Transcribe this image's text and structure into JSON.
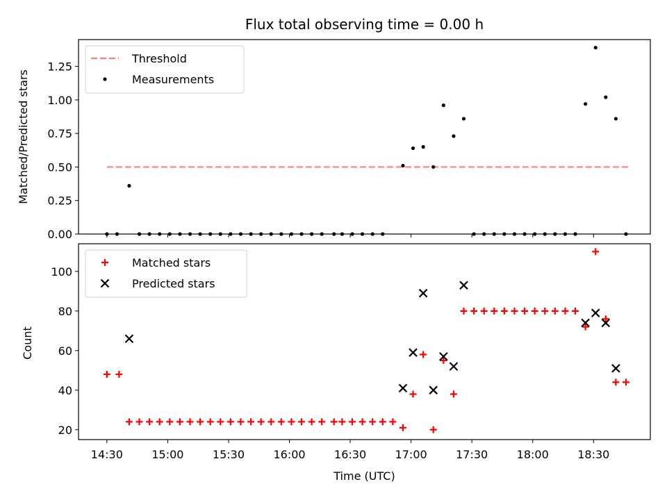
{
  "chart_data": [
    {
      "type": "scatter",
      "title": "Flux total observing time = 0.00 h",
      "xlabel": "",
      "ylabel": "Matched/Predicted stars",
      "ylim": [
        0,
        1.45
      ],
      "yticks": [
        0.0,
        0.25,
        0.5,
        0.75,
        1.0,
        1.25
      ],
      "ytick_labels": [
        "0.00",
        "0.25",
        "0.50",
        "0.75",
        "1.00",
        "1.25"
      ],
      "xlim": [
        "14:16",
        "18:58"
      ],
      "xticks": [
        "14:30",
        "15:00",
        "15:30",
        "16:00",
        "16:30",
        "17:00",
        "17:30",
        "18:00",
        "18:30"
      ],
      "legend_position": "upper left",
      "series": [
        {
          "name": "Threshold",
          "kind": "line",
          "style": "dashed",
          "color": "#ff7f7f",
          "x": [
            "14:30",
            "18:48"
          ],
          "y": [
            0.5,
            0.5
          ]
        },
        {
          "name": "Measurements",
          "kind": "scatter",
          "color": "#000000",
          "points": [
            [
              "14:30",
              0.0
            ],
            [
              "14:35",
              0.0
            ],
            [
              "14:41",
              0.36
            ],
            [
              "14:46",
              0.0
            ],
            [
              "14:51",
              0.0
            ],
            [
              "14:56",
              0.0
            ],
            [
              "15:01",
              0.0
            ],
            [
              "15:06",
              0.0
            ],
            [
              "15:11",
              0.0
            ],
            [
              "15:16",
              0.0
            ],
            [
              "15:21",
              0.0
            ],
            [
              "15:26",
              0.0
            ],
            [
              "15:31",
              0.0
            ],
            [
              "15:36",
              0.0
            ],
            [
              "15:41",
              0.0
            ],
            [
              "15:46",
              0.0
            ],
            [
              "15:51",
              0.0
            ],
            [
              "15:56",
              0.0
            ],
            [
              "16:01",
              0.0
            ],
            [
              "16:06",
              0.0
            ],
            [
              "16:11",
              0.0
            ],
            [
              "16:16",
              0.0
            ],
            [
              "16:22",
              0.0
            ],
            [
              "16:26",
              0.0
            ],
            [
              "16:31",
              0.0
            ],
            [
              "16:36",
              0.0
            ],
            [
              "16:41",
              0.0
            ],
            [
              "16:46",
              0.0
            ],
            [
              "16:56",
              0.51
            ],
            [
              "17:01",
              0.64
            ],
            [
              "17:06",
              0.65
            ],
            [
              "17:11",
              0.5
            ],
            [
              "17:16",
              0.96
            ],
            [
              "17:21",
              0.73
            ],
            [
              "17:26",
              0.86
            ],
            [
              "17:31",
              0.0
            ],
            [
              "17:36",
              0.0
            ],
            [
              "17:41",
              0.0
            ],
            [
              "17:46",
              0.0
            ],
            [
              "17:51",
              0.0
            ],
            [
              "17:56",
              0.0
            ],
            [
              "18:01",
              0.0
            ],
            [
              "18:06",
              0.0
            ],
            [
              "18:11",
              0.0
            ],
            [
              "18:16",
              0.0
            ],
            [
              "18:21",
              0.0
            ],
            [
              "18:26",
              0.97
            ],
            [
              "18:31",
              1.39
            ],
            [
              "18:36",
              1.02
            ],
            [
              "18:41",
              0.86
            ],
            [
              "18:46",
              0.0
            ]
          ]
        }
      ]
    },
    {
      "type": "scatter",
      "title": "",
      "xlabel": "Time (UTC)",
      "ylabel": "Count",
      "ylim": [
        15,
        114
      ],
      "yticks": [
        20,
        40,
        60,
        80,
        100
      ],
      "xlim": [
        "14:16",
        "18:58"
      ],
      "xticks": [
        "14:30",
        "15:00",
        "15:30",
        "16:00",
        "16:30",
        "17:00",
        "17:30",
        "18:00",
        "18:30"
      ],
      "legend_position": "upper left",
      "series": [
        {
          "name": "Matched stars",
          "marker": "+",
          "color": "#ff0000",
          "points": [
            [
              "14:30",
              48
            ],
            [
              "14:36",
              48
            ],
            [
              "14:41",
              24
            ],
            [
              "14:46",
              24
            ],
            [
              "14:51",
              24
            ],
            [
              "14:56",
              24
            ],
            [
              "15:01",
              24
            ],
            [
              "15:06",
              24
            ],
            [
              "15:11",
              24
            ],
            [
              "15:16",
              24
            ],
            [
              "15:21",
              24
            ],
            [
              "15:26",
              24
            ],
            [
              "15:31",
              24
            ],
            [
              "15:36",
              24
            ],
            [
              "15:41",
              24
            ],
            [
              "15:46",
              24
            ],
            [
              "15:51",
              24
            ],
            [
              "15:56",
              24
            ],
            [
              "16:01",
              24
            ],
            [
              "16:06",
              24
            ],
            [
              "16:11",
              24
            ],
            [
              "16:16",
              24
            ],
            [
              "16:22",
              24
            ],
            [
              "16:26",
              24
            ],
            [
              "16:31",
              24
            ],
            [
              "16:36",
              24
            ],
            [
              "16:41",
              24
            ],
            [
              "16:46",
              24
            ],
            [
              "16:51",
              24
            ],
            [
              "16:56",
              21
            ],
            [
              "17:01",
              38
            ],
            [
              "17:06",
              58
            ],
            [
              "17:11",
              20
            ],
            [
              "17:16",
              55
            ],
            [
              "17:21",
              38
            ],
            [
              "17:26",
              80
            ],
            [
              "17:31",
              80
            ],
            [
              "17:36",
              80
            ],
            [
              "17:41",
              80
            ],
            [
              "17:46",
              80
            ],
            [
              "17:51",
              80
            ],
            [
              "17:56",
              80
            ],
            [
              "18:01",
              80
            ],
            [
              "18:06",
              80
            ],
            [
              "18:11",
              80
            ],
            [
              "18:16",
              80
            ],
            [
              "18:21",
              80
            ],
            [
              "18:26",
              72
            ],
            [
              "18:31",
              110
            ],
            [
              "18:36",
              76
            ],
            [
              "18:41",
              44
            ],
            [
              "18:46",
              44
            ]
          ]
        },
        {
          "name": "Predicted stars",
          "marker": "x",
          "color": "#000000",
          "points": [
            [
              "14:41",
              66
            ],
            [
              "16:56",
              41
            ],
            [
              "17:01",
              59
            ],
            [
              "17:06",
              89
            ],
            [
              "17:11",
              40
            ],
            [
              "17:16",
              57
            ],
            [
              "17:21",
              52
            ],
            [
              "17:26",
              93
            ],
            [
              "18:26",
              74
            ],
            [
              "18:31",
              79
            ],
            [
              "18:36",
              74
            ],
            [
              "18:41",
              51
            ]
          ]
        }
      ]
    }
  ]
}
